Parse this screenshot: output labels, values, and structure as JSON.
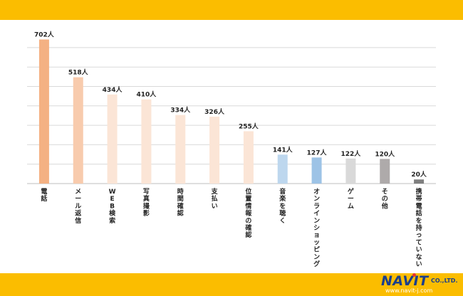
{
  "chart_data": {
    "type": "bar",
    "categories": [
      "電話",
      "メール返信",
      "WEB検索",
      "写真撮影",
      "時間確認",
      "支払い",
      "位置情報の確認",
      "音楽を聴く",
      "オンラインショッピング",
      "ゲーム",
      "その他",
      "携帯電話を持っていない"
    ],
    "values": [
      702,
      518,
      434,
      410,
      334,
      326,
      255,
      141,
      127,
      122,
      120,
      20
    ],
    "data_labels": [
      "702人",
      "518人",
      "434人",
      "410人",
      "334人",
      "326人",
      "255人",
      "141人",
      "127人",
      "122人",
      "120人",
      "20人"
    ],
    "bar_colors": [
      "#f4b183",
      "#f8cbad",
      "#fbe5d6",
      "#fbe5d6",
      "#fbe5d6",
      "#fbe5d6",
      "#fbe5d6",
      "#bdd7ee",
      "#9dc3e6",
      "#d9d9d9",
      "#aeaaaa",
      "#7f7f7f"
    ],
    "unit": "人",
    "ylim": [
      0,
      750
    ],
    "grid": true,
    "title": "",
    "xlabel": "",
    "ylabel": ""
  },
  "colors": {
    "band": "#fbbd00",
    "grid": "#d9d9d9",
    "brand": "#1b3f8b"
  },
  "logo": {
    "name": "NAVIT",
    "suffix": "CO.,LTD.",
    "url": "www.navit-j.com"
  }
}
